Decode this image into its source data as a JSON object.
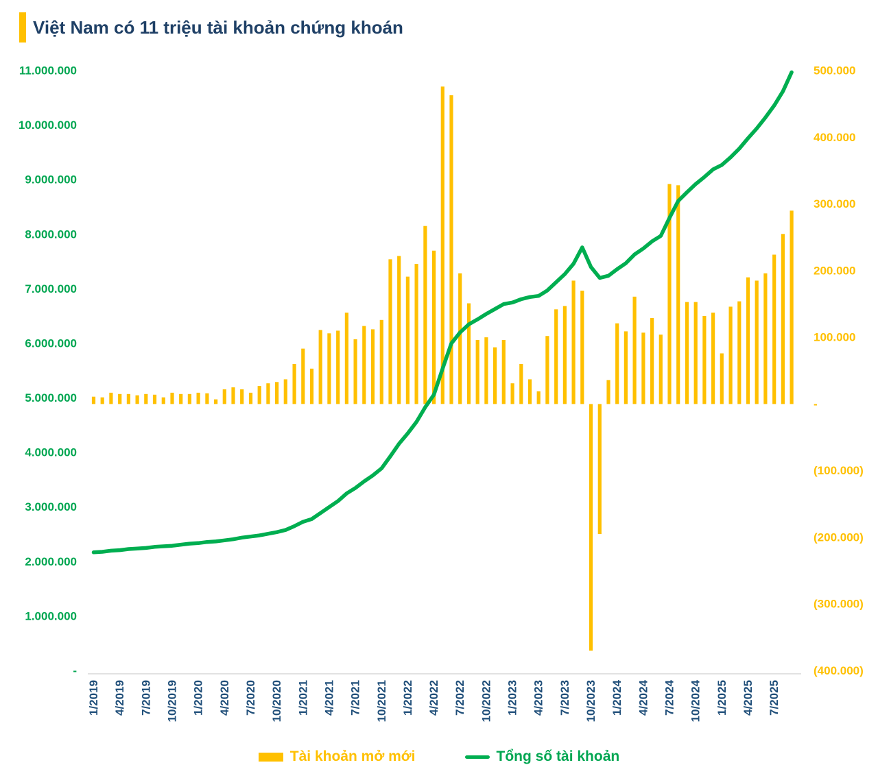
{
  "title": {
    "text": "Việt Nam có 11 triệu tài khoản chứng khoán"
  },
  "colors": {
    "accent": "#FFC000",
    "title": "#1F4066",
    "bar": "#FFC000",
    "line": "#00AE50",
    "left_axis": "#00A651",
    "right_axis": "#FFC000",
    "x_labels": "#1F4E79",
    "axis_line": "#D9D9D9"
  },
  "chart_data": {
    "type": "bar",
    "subtype": "combo-bar-line-dual-axis",
    "title": "Việt Nam có 11 triệu tài khoản chứng khoán",
    "grid": false,
    "legend_position": "bottom",
    "categories": [
      "1/2019",
      "2/2019",
      "3/2019",
      "4/2019",
      "5/2019",
      "6/2019",
      "7/2019",
      "8/2019",
      "9/2019",
      "10/2019",
      "11/2019",
      "12/2019",
      "1/2020",
      "2/2020",
      "3/2020",
      "4/2020",
      "5/2020",
      "6/2020",
      "7/2020",
      "8/2020",
      "9/2020",
      "10/2020",
      "11/2020",
      "12/2020",
      "1/2021",
      "2/2021",
      "3/2021",
      "4/2021",
      "5/2021",
      "6/2021",
      "7/2021",
      "8/2021",
      "9/2021",
      "10/2021",
      "11/2021",
      "12/2021",
      "1/2022",
      "2/2022",
      "3/2022",
      "4/2022",
      "5/2022",
      "6/2022",
      "7/2022",
      "8/2022",
      "9/2022",
      "10/2022",
      "11/2022",
      "12/2022",
      "1/2023",
      "2/2023",
      "3/2023",
      "4/2023",
      "5/2023",
      "6/2023",
      "7/2023",
      "8/2023",
      "9/2023",
      "10/2023",
      "11/2023",
      "12/2023",
      "1/2024",
      "2/2024",
      "3/2024",
      "4/2024",
      "5/2024",
      "6/2024",
      "7/2024",
      "8/2024",
      "9/2024",
      "10/2024",
      "11/2024",
      "12/2024",
      "1/2025",
      "2/2025",
      "3/2025",
      "4/2025",
      "5/2025",
      "6/2025",
      "7/2025",
      "8/2025",
      "9/2025"
    ],
    "series": [
      {
        "name": "Tài khoản mở mới",
        "axis": "right",
        "type": "bar",
        "values": [
          11000,
          10000,
          17000,
          15000,
          15000,
          13000,
          15000,
          14000,
          10000,
          17000,
          15000,
          15000,
          17000,
          16000,
          7000,
          22000,
          25000,
          22000,
          17000,
          27000,
          31000,
          33000,
          37000,
          60000,
          83000,
          53000,
          111000,
          106000,
          110000,
          137000,
          97000,
          117000,
          112000,
          126000,
          217000,
          222000,
          191000,
          210000,
          267000,
          230000,
          476000,
          463000,
          196000,
          151000,
          96000,
          100000,
          85000,
          96000,
          31000,
          60000,
          37000,
          19000,
          102000,
          142000,
          147000,
          185000,
          170000,
          -370000,
          -195000,
          36000,
          121000,
          109000,
          161000,
          107000,
          129000,
          104000,
          330000,
          328000,
          153000,
          153000,
          132000,
          137000,
          76000,
          146000,
          154000,
          190000,
          185000,
          196000,
          224000,
          255000,
          290000
        ]
      },
      {
        "name": "Tổng số tài khoản",
        "axis": "left",
        "type": "line",
        "values": [
          2170000,
          2180000,
          2200000,
          2210000,
          2230000,
          2240000,
          2250000,
          2270000,
          2280000,
          2290000,
          2310000,
          2330000,
          2340000,
          2360000,
          2370000,
          2390000,
          2410000,
          2440000,
          2460000,
          2480000,
          2510000,
          2540000,
          2580000,
          2650000,
          2730000,
          2780000,
          2890000,
          3000000,
          3110000,
          3250000,
          3350000,
          3470000,
          3580000,
          3710000,
          3930000,
          4160000,
          4350000,
          4560000,
          4830000,
          5060000,
          5540000,
          6000000,
          6200000,
          6350000,
          6440000,
          6540000,
          6630000,
          6720000,
          6750000,
          6810000,
          6850000,
          6870000,
          6970000,
          7120000,
          7270000,
          7460000,
          7760000,
          7400000,
          7200000,
          7240000,
          7360000,
          7470000,
          7630000,
          7740000,
          7870000,
          7970000,
          8300000,
          8610000,
          8770000,
          8920000,
          9050000,
          9190000,
          9270000,
          9410000,
          9570000,
          9760000,
          9940000,
          10140000,
          10360000,
          10620000,
          10970000
        ]
      }
    ],
    "left_axis": {
      "labels": [
        "11.000.000",
        "10.000.000",
        "9.000.000",
        "8.000.000",
        "7.000.000",
        "6.000.000",
        "5.000.000",
        "4.000.000",
        "3.000.000",
        "2.000.000",
        "1.000.000",
        "-"
      ],
      "values": [
        11000000,
        10000000,
        9000000,
        8000000,
        7000000,
        6000000,
        5000000,
        4000000,
        3000000,
        2000000,
        1000000,
        0
      ],
      "range": [
        0,
        11000000
      ]
    },
    "right_axis": {
      "labels": [
        "500.000",
        "400.000",
        "300.000",
        "200.000",
        "100.000",
        "-",
        "(100.000)",
        "(200.000)",
        "(300.000)",
        "(400.000)"
      ],
      "values": [
        500000,
        400000,
        300000,
        200000,
        100000,
        0,
        -100000,
        -200000,
        -300000,
        -400000
      ],
      "range": [
        -400000,
        500000
      ]
    },
    "x_tick_every": 3,
    "legend": [
      {
        "label": "Tài khoản mở mới",
        "color": "#FFC000",
        "marker": "bar"
      },
      {
        "label": "Tổng số tài khoản",
        "color": "#00AE50",
        "marker": "line"
      }
    ]
  }
}
